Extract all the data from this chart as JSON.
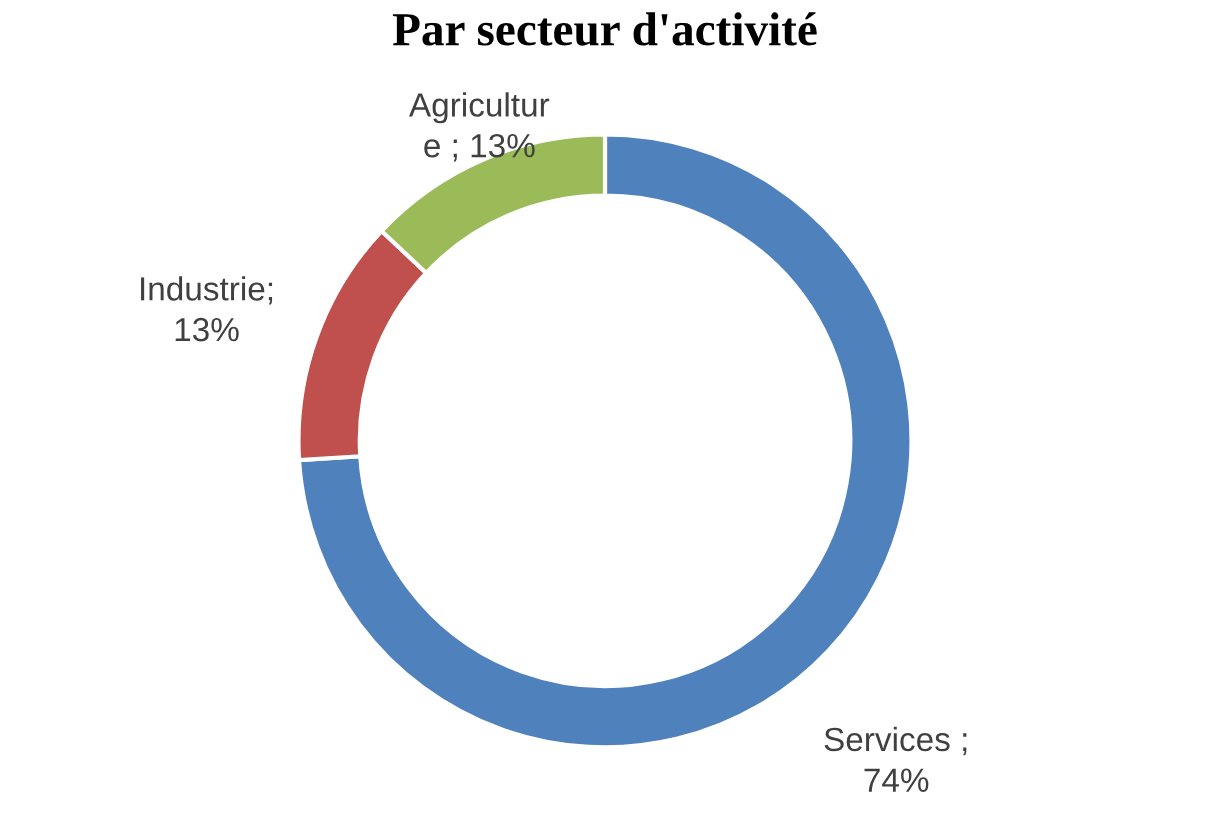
{
  "chart_data": {
    "type": "donut",
    "title": "Par secteur d'activité",
    "categories": [
      null,
      null,
      null
    ],
    "values": [
      74,
      13,
      13
    ],
    "colors": [
      "#4f81bd",
      "#c0504d",
      "#9bbb59"
    ],
    "value_labels": [
      "Services ;\n74%",
      "Industrie;\n13%",
      "Agricultur\ne ; 13%"
    ],
    "legend": false
  }
}
